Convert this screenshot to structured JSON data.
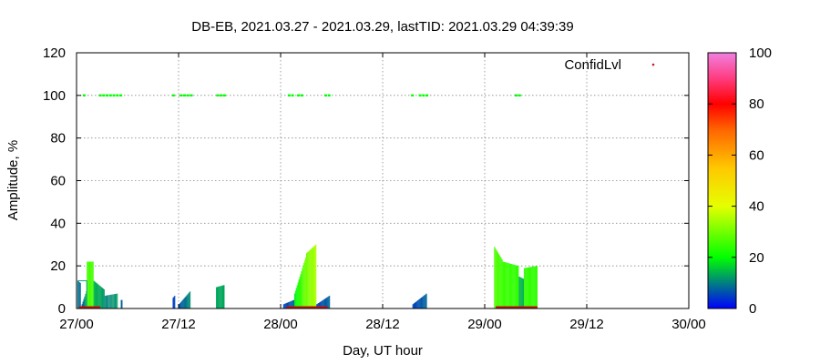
{
  "chart_data": {
    "type": "bar",
    "title": "DB-EB, 2021.03.27 - 2021.03.29, lastTID: 2021.03.29 04:39:39",
    "xlabel": "Day, UT hour",
    "ylabel": "Amplitude, %",
    "xlim": [
      0,
      72
    ],
    "ylim": [
      0,
      120
    ],
    "x_ticks": [
      {
        "v": 0,
        "label": "27/00"
      },
      {
        "v": 12,
        "label": "27/12"
      },
      {
        "v": 24,
        "label": "28/00"
      },
      {
        "v": 36,
        "label": "28/12"
      },
      {
        "v": 48,
        "label": "29/00"
      },
      {
        "v": 60,
        "label": "29/12"
      },
      {
        "v": 72,
        "label": "30/00"
      }
    ],
    "y_ticks": [
      0,
      20,
      40,
      60,
      80,
      100,
      120
    ],
    "grid": true,
    "legend": {
      "label": "ConfidLvl",
      "position": "top-right"
    },
    "colorbar": {
      "range": [
        0,
        100
      ],
      "ticks": [
        0,
        20,
        40,
        60,
        80,
        100
      ]
    },
    "confidence_points": [
      {
        "x": 0.9,
        "y": 100,
        "c": 20
      },
      {
        "x": 2.8,
        "y": 100,
        "c": 20
      },
      {
        "x": 3.2,
        "y": 100,
        "c": 20
      },
      {
        "x": 3.6,
        "y": 100,
        "c": 20
      },
      {
        "x": 4.0,
        "y": 100,
        "c": 20
      },
      {
        "x": 4.4,
        "y": 100,
        "c": 20
      },
      {
        "x": 4.8,
        "y": 100,
        "c": 20
      },
      {
        "x": 5.2,
        "y": 100,
        "c": 20
      },
      {
        "x": 11.4,
        "y": 100,
        "c": 20
      },
      {
        "x": 12.3,
        "y": 100,
        "c": 20
      },
      {
        "x": 12.7,
        "y": 100,
        "c": 20
      },
      {
        "x": 13.1,
        "y": 100,
        "c": 20
      },
      {
        "x": 13.5,
        "y": 100,
        "c": 20
      },
      {
        "x": 16.6,
        "y": 100,
        "c": 20
      },
      {
        "x": 17.0,
        "y": 100,
        "c": 20
      },
      {
        "x": 17.4,
        "y": 100,
        "c": 20
      },
      {
        "x": 25.0,
        "y": 100,
        "c": 20
      },
      {
        "x": 25.4,
        "y": 100,
        "c": 20
      },
      {
        "x": 26.1,
        "y": 100,
        "c": 20
      },
      {
        "x": 26.5,
        "y": 100,
        "c": 20
      },
      {
        "x": 29.3,
        "y": 100,
        "c": 20
      },
      {
        "x": 29.7,
        "y": 100,
        "c": 20
      },
      {
        "x": 39.5,
        "y": 100,
        "c": 20
      },
      {
        "x": 40.4,
        "y": 100,
        "c": 20
      },
      {
        "x": 40.8,
        "y": 100,
        "c": 20
      },
      {
        "x": 41.2,
        "y": 100,
        "c": 20
      },
      {
        "x": 51.7,
        "y": 100,
        "c": 20
      },
      {
        "x": 52.1,
        "y": 100,
        "c": 20
      }
    ],
    "bar_groups": [
      {
        "x0": 0.1,
        "x1": 0.5,
        "dx": 0.1,
        "y0": 13,
        "y1": 12,
        "c0": 8,
        "c1": 8
      },
      {
        "x0": 0.6,
        "x1": 1.2,
        "dx": 0.1,
        "y0": 2,
        "y1": 8,
        "c0": 6,
        "c1": 14
      },
      {
        "x0": 1.2,
        "x1": 2.0,
        "dx": 0.1,
        "y0": 22,
        "y1": 22,
        "c0": 26,
        "c1": 26
      },
      {
        "x0": 2.0,
        "x1": 3.3,
        "dx": 0.1,
        "y0": 13,
        "y1": 9,
        "c0": 14,
        "c1": 12
      },
      {
        "x0": 3.3,
        "x1": 4.9,
        "dx": 0.12,
        "y0": 6,
        "y1": 7,
        "c0": 10,
        "c1": 12
      },
      {
        "x0": 5.2,
        "x1": 5.4,
        "dx": 0.1,
        "y0": 4,
        "y1": 4,
        "c0": 8,
        "c1": 8
      },
      {
        "x0": 11.3,
        "x1": 11.6,
        "dx": 0.1,
        "y0": 5,
        "y1": 6,
        "c0": 5,
        "c1": 5
      },
      {
        "x0": 12.0,
        "x1": 13.4,
        "dx": 0.1,
        "y0": 2,
        "y1": 8,
        "c0": 6,
        "c1": 11
      },
      {
        "x0": 16.4,
        "x1": 17.4,
        "dx": 0.1,
        "y0": 10,
        "y1": 11,
        "c0": 13,
        "c1": 13
      },
      {
        "x0": 24.3,
        "x1": 25.6,
        "dx": 0.1,
        "y0": 2,
        "y1": 4,
        "c0": 5,
        "c1": 8
      },
      {
        "x0": 25.6,
        "x1": 27.0,
        "dx": 0.1,
        "y0": 7,
        "y1": 24,
        "c0": 18,
        "c1": 30
      },
      {
        "x0": 27.0,
        "x1": 28.2,
        "dx": 0.1,
        "y0": 26,
        "y1": 30,
        "c0": 30,
        "c1": 35
      },
      {
        "x0": 28.2,
        "x1": 29.8,
        "dx": 0.1,
        "y0": 2,
        "y1": 6,
        "c0": 5,
        "c1": 8
      },
      {
        "x0": 39.5,
        "x1": 41.2,
        "dx": 0.1,
        "y0": 2,
        "y1": 7,
        "c0": 5,
        "c1": 8
      },
      {
        "x0": 49.1,
        "x1": 50.1,
        "dx": 0.1,
        "y0": 29,
        "y1": 23,
        "c0": 27,
        "c1": 25
      },
      {
        "x0": 50.1,
        "x1": 52.0,
        "dx": 0.1,
        "y0": 22,
        "y1": 20,
        "c0": 25,
        "c1": 24
      },
      {
        "x0": 52.0,
        "x1": 52.6,
        "dx": 0.1,
        "y0": 15,
        "y1": 14,
        "c0": 14,
        "c1": 14
      },
      {
        "x0": 52.6,
        "x1": 54.2,
        "dx": 0.1,
        "y0": 19,
        "y1": 20,
        "c0": 24,
        "c1": 24
      }
    ],
    "outline_bars": [
      {
        "x0": 0.2,
        "x1": 1.2,
        "y": 13
      }
    ],
    "baseline_marks": [
      {
        "x0": 0.3,
        "x1": 2.8
      },
      {
        "x0": 24.7,
        "x1": 29.5
      },
      {
        "x0": 49.3,
        "x1": 54.2
      }
    ]
  }
}
